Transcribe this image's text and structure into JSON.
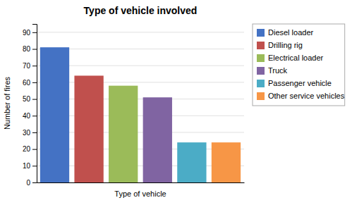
{
  "chart_data": {
    "type": "bar",
    "title": "Type of vehicle involved",
    "xlabel": "Type of vehicle",
    "ylabel": "Number of fires",
    "categories": [
      "Diesel loader",
      "Drilling rig",
      "Electrical loader",
      "Truck",
      "Passenger vehicle",
      "Other service vehicles"
    ],
    "values": [
      81,
      64,
      58,
      51,
      24,
      24
    ],
    "colors": [
      "#4472C4",
      "#C0504D",
      "#9BBB59",
      "#8064A2",
      "#4BACC6",
      "#F79646"
    ],
    "ylim": [
      0,
      95
    ],
    "yticks": [
      0,
      10,
      20,
      30,
      40,
      50,
      60,
      70,
      80,
      90
    ],
    "grid": true,
    "legend": "right",
    "tick_labels": "y"
  }
}
